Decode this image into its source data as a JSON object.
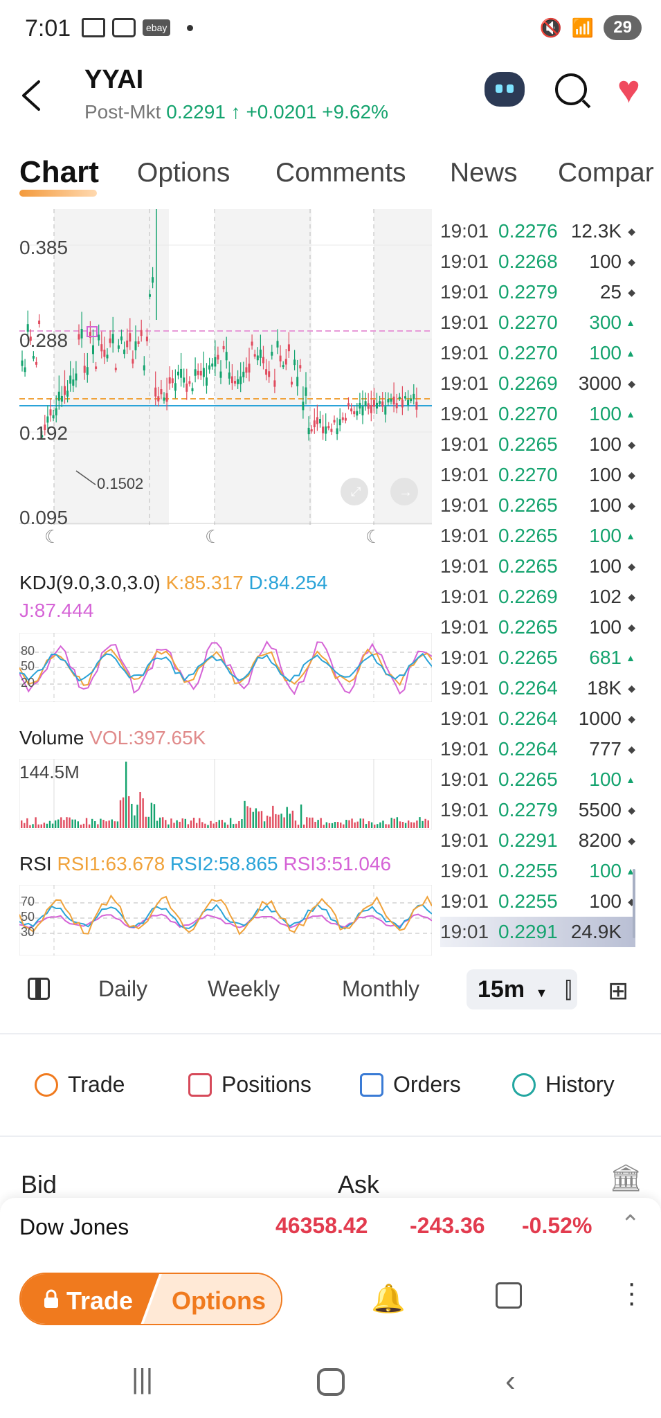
{
  "status": {
    "time": "7:01",
    "ebay": "ebay",
    "battery": "29"
  },
  "header": {
    "ticker": "YYAI",
    "session": "Post-Mkt",
    "price": "0.2291",
    "change": "+0.0201",
    "change_pct": "+9.62%"
  },
  "tabs": [
    "Chart",
    "Options",
    "Comments",
    "News",
    "Compar"
  ],
  "chart": {
    "y_labels": [
      "0.385",
      "0.288",
      "0.192",
      "0.095"
    ],
    "low_label": "0.1502"
  },
  "ticks": [
    {
      "time": "19:01",
      "price": "0.2276",
      "vol": "12.3K",
      "dir": "dot",
      "vol_green": false
    },
    {
      "time": "19:01",
      "price": "0.2268",
      "vol": "100",
      "dir": "dot",
      "vol_green": false
    },
    {
      "time": "19:01",
      "price": "0.2279",
      "vol": "25",
      "dir": "dot",
      "vol_green": false
    },
    {
      "time": "19:01",
      "price": "0.2270",
      "vol": "300",
      "dir": "up",
      "vol_green": true
    },
    {
      "time": "19:01",
      "price": "0.2270",
      "vol": "100",
      "dir": "up",
      "vol_green": true
    },
    {
      "time": "19:01",
      "price": "0.2269",
      "vol": "3000",
      "dir": "dot",
      "vol_green": false
    },
    {
      "time": "19:01",
      "price": "0.2270",
      "vol": "100",
      "dir": "up",
      "vol_green": true
    },
    {
      "time": "19:01",
      "price": "0.2265",
      "vol": "100",
      "dir": "dot",
      "vol_green": false
    },
    {
      "time": "19:01",
      "price": "0.2270",
      "vol": "100",
      "dir": "dot",
      "vol_green": false
    },
    {
      "time": "19:01",
      "price": "0.2265",
      "vol": "100",
      "dir": "dot",
      "vol_green": false
    },
    {
      "time": "19:01",
      "price": "0.2265",
      "vol": "100",
      "dir": "up",
      "vol_green": true
    },
    {
      "time": "19:01",
      "price": "0.2265",
      "vol": "100",
      "dir": "dot",
      "vol_green": false
    },
    {
      "time": "19:01",
      "price": "0.2269",
      "vol": "102",
      "dir": "dot",
      "vol_green": false
    },
    {
      "time": "19:01",
      "price": "0.2265",
      "vol": "100",
      "dir": "dot",
      "vol_green": false
    },
    {
      "time": "19:01",
      "price": "0.2265",
      "vol": "681",
      "dir": "up",
      "vol_green": true
    },
    {
      "time": "19:01",
      "price": "0.2264",
      "vol": "18K",
      "dir": "dot",
      "vol_green": false
    },
    {
      "time": "19:01",
      "price": "0.2264",
      "vol": "1000",
      "dir": "dot",
      "vol_green": false
    },
    {
      "time": "19:01",
      "price": "0.2264",
      "vol": "777",
      "dir": "dot",
      "vol_green": false
    },
    {
      "time": "19:01",
      "price": "0.2265",
      "vol": "100",
      "dir": "up",
      "vol_green": true
    },
    {
      "time": "19:01",
      "price": "0.2279",
      "vol": "5500",
      "dir": "dot",
      "vol_green": false
    },
    {
      "time": "19:01",
      "price": "0.2291",
      "vol": "8200",
      "dir": "dot",
      "vol_green": false
    },
    {
      "time": "19:01",
      "price": "0.2255",
      "vol": "100",
      "dir": "up",
      "vol_green": true
    },
    {
      "time": "19:01",
      "price": "0.2255",
      "vol": "100",
      "dir": "dot",
      "vol_green": false
    },
    {
      "time": "19:01",
      "price": "0.2291",
      "vol": "24.9K",
      "dir": "",
      "vol_green": false
    }
  ],
  "kdj": {
    "label": "KDJ(9.0,3.0,3.0)",
    "k": "K:85.317",
    "d": "D:84.254",
    "j": "J:87.444",
    "levels": [
      "80",
      "50",
      "20"
    ]
  },
  "volume": {
    "label": "Volume",
    "vol": "VOL:397.65K",
    "max": "144.5M"
  },
  "rsi": {
    "label": "RSI",
    "rsi1": "RSI1:63.678",
    "rsi2": "RSI2:58.865",
    "rsi3": "RSI3:51.046",
    "levels": [
      "70",
      "50",
      "30"
    ]
  },
  "periods": {
    "daily": "Daily",
    "weekly": "Weekly",
    "monthly": "Monthly",
    "selected": "15m"
  },
  "actions": {
    "trade": "Trade",
    "positions": "Positions",
    "orders": "Orders",
    "history": "History"
  },
  "quote": {
    "bid": "Bid",
    "ask": "Ask"
  },
  "index": {
    "name": "Dow Jones",
    "value": "46358.42",
    "change": "-243.36",
    "change_pct": "-0.52%"
  },
  "bottom": {
    "trade": "Trade",
    "options": "Options"
  },
  "colors": {
    "green": "#14a36e",
    "red": "#e23b4e",
    "orange": "#f07a1e"
  }
}
